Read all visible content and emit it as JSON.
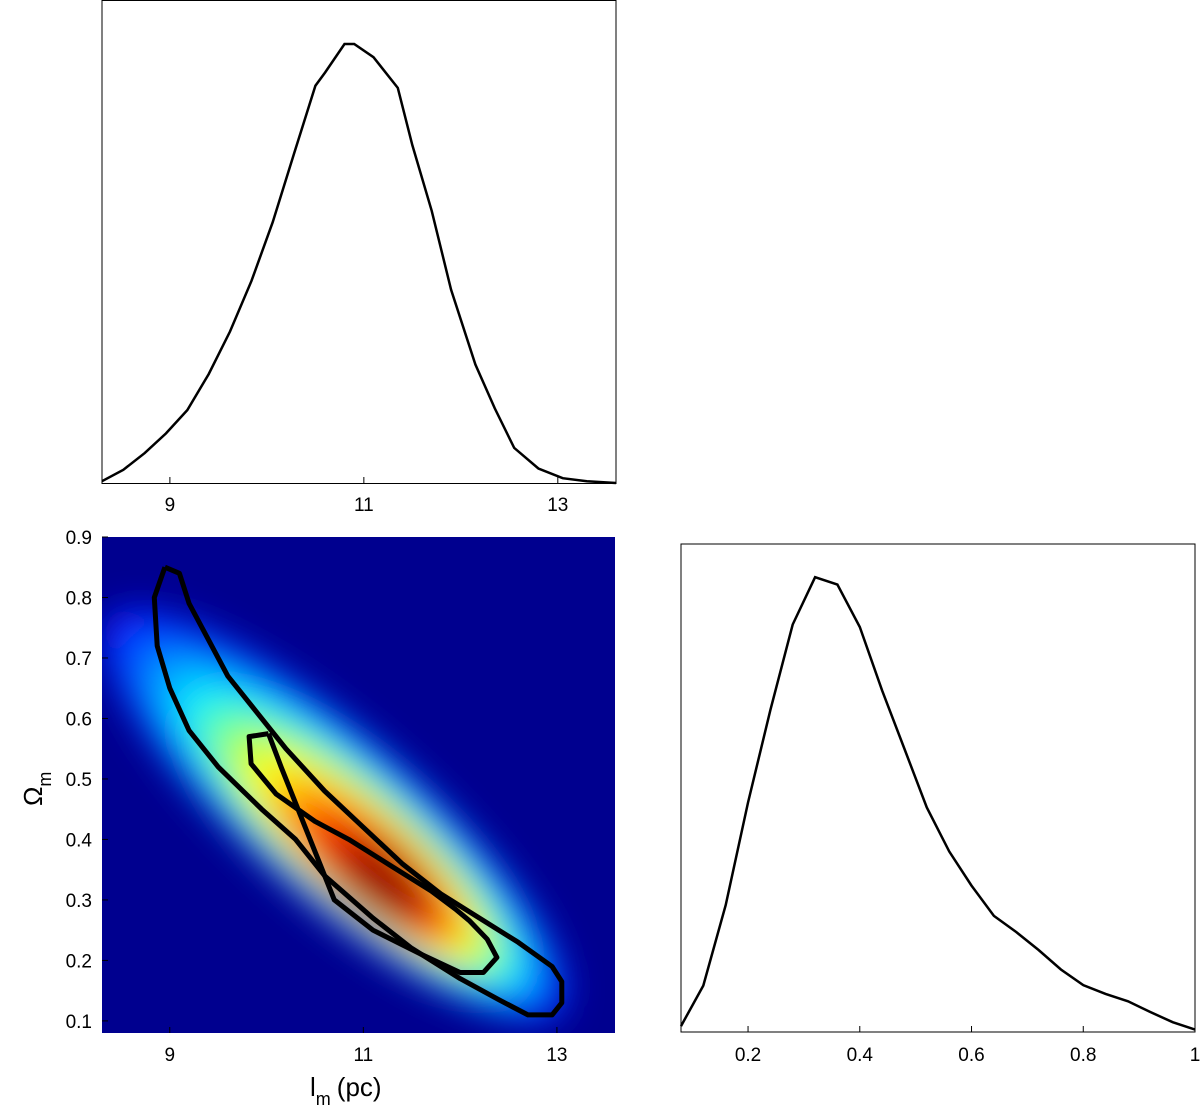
{
  "chart_data": [
    {
      "type": "line",
      "panel": "marginal-lm",
      "xlim": [
        8.3,
        13.6
      ],
      "x_ticks": [
        9,
        11,
        13
      ],
      "grid": false,
      "series": [
        {
          "x": [
            8.3,
            8.52,
            8.74,
            8.96,
            9.18,
            9.4,
            9.62,
            9.84,
            10.06,
            10.28,
            10.5,
            10.6,
            10.8,
            10.9,
            11.1,
            11.35,
            11.5,
            11.7,
            11.9,
            12.15,
            12.35,
            12.55,
            12.8,
            13.05,
            13.3,
            13.6
          ],
          "y": [
            0.004,
            0.03,
            0.068,
            0.113,
            0.166,
            0.248,
            0.345,
            0.46,
            0.594,
            0.75,
            0.905,
            0.935,
            1.0,
            1.0,
            0.97,
            0.9,
            0.77,
            0.62,
            0.44,
            0.27,
            0.17,
            0.08,
            0.033,
            0.011,
            0.004,
            0.0
          ]
        }
      ]
    },
    {
      "type": "heatmap",
      "panel": "joint-lm-omega",
      "xlabel": "l",
      "xlabel_sub": "m",
      "xlabel_unit": "(pc)",
      "ylabel": "Ω",
      "ylabel_sub": "m",
      "xlim": [
        8.3,
        13.6
      ],
      "ylim": [
        0.08,
        0.9
      ],
      "x_ticks": [
        9,
        11,
        13
      ],
      "y_ticks": [
        0.1,
        0.2,
        0.3,
        0.4,
        0.5,
        0.6,
        0.7,
        0.8,
        0.9
      ],
      "colormap": "jet",
      "density_peak": {
        "x": 11.2,
        "y": 0.33
      },
      "contours": [
        {
          "level": "inner",
          "x": [
            10.02,
            9.82,
            9.84,
            10.1,
            10.5,
            10.85,
            11.3,
            11.7,
            11.95,
            12.1,
            12.28,
            12.38,
            12.24,
            12.0,
            11.6,
            11.1,
            10.7,
            10.55,
            10.35,
            10.15
          ],
          "y": [
            0.575,
            0.57,
            0.525,
            0.475,
            0.43,
            0.4,
            0.355,
            0.315,
            0.285,
            0.265,
            0.235,
            0.205,
            0.18,
            0.18,
            0.21,
            0.25,
            0.3,
            0.36,
            0.44,
            0.52
          ]
        },
        {
          "level": "outer",
          "x": [
            8.95,
            8.84,
            8.87,
            9.0,
            9.2,
            9.5,
            9.95,
            10.3,
            10.6,
            11.1,
            11.5,
            12.0,
            12.4,
            12.7,
            12.95,
            13.05,
            13.05,
            12.95,
            12.6,
            12.2,
            11.8,
            11.4,
            11.0,
            10.6,
            10.2,
            9.9,
            9.6,
            9.4,
            9.2,
            9.1
          ],
          "y": [
            0.85,
            0.8,
            0.72,
            0.65,
            0.58,
            0.52,
            0.45,
            0.4,
            0.34,
            0.27,
            0.22,
            0.17,
            0.135,
            0.11,
            0.11,
            0.13,
            0.165,
            0.19,
            0.23,
            0.27,
            0.31,
            0.36,
            0.42,
            0.48,
            0.55,
            0.61,
            0.67,
            0.73,
            0.79,
            0.84
          ]
        }
      ]
    },
    {
      "type": "line",
      "panel": "marginal-omega",
      "xlim": [
        0.08,
        1.0
      ],
      "x_ticks": [
        0.2,
        0.4,
        0.6,
        0.8,
        1
      ],
      "grid": false,
      "series": [
        {
          "x": [
            0.08,
            0.12,
            0.16,
            0.2,
            0.24,
            0.28,
            0.32,
            0.36,
            0.4,
            0.44,
            0.48,
            0.52,
            0.56,
            0.6,
            0.64,
            0.68,
            0.72,
            0.76,
            0.8,
            0.84,
            0.88,
            0.92,
            0.96,
            1.0
          ],
          "y": [
            0.012,
            0.095,
            0.26,
            0.47,
            0.66,
            0.835,
            0.932,
            0.917,
            0.83,
            0.7,
            0.58,
            0.46,
            0.37,
            0.3,
            0.238,
            0.205,
            0.168,
            0.128,
            0.096,
            0.078,
            0.063,
            0.041,
            0.02,
            0.005
          ]
        }
      ]
    }
  ]
}
